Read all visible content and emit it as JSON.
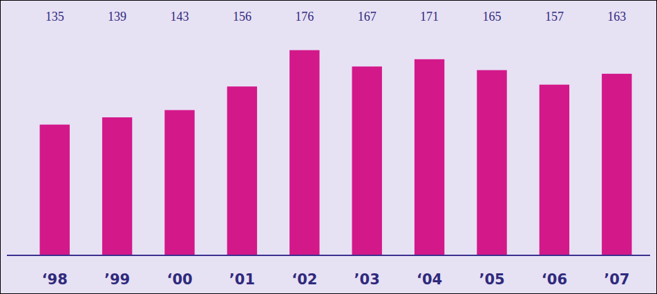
{
  "chart_data": {
    "type": "bar",
    "categories": [
      "‘98",
      "’99",
      "‘00",
      "’01",
      "‘02",
      "’03",
      "‘04",
      "’05",
      "‘06",
      "’07"
    ],
    "values": [
      135,
      139,
      143,
      156,
      176,
      167,
      171,
      165,
      157,
      163
    ],
    "color": "#d3188a",
    "ylim": [
      63,
      185
    ],
    "data_labels": true,
    "tick_labels": "x"
  }
}
